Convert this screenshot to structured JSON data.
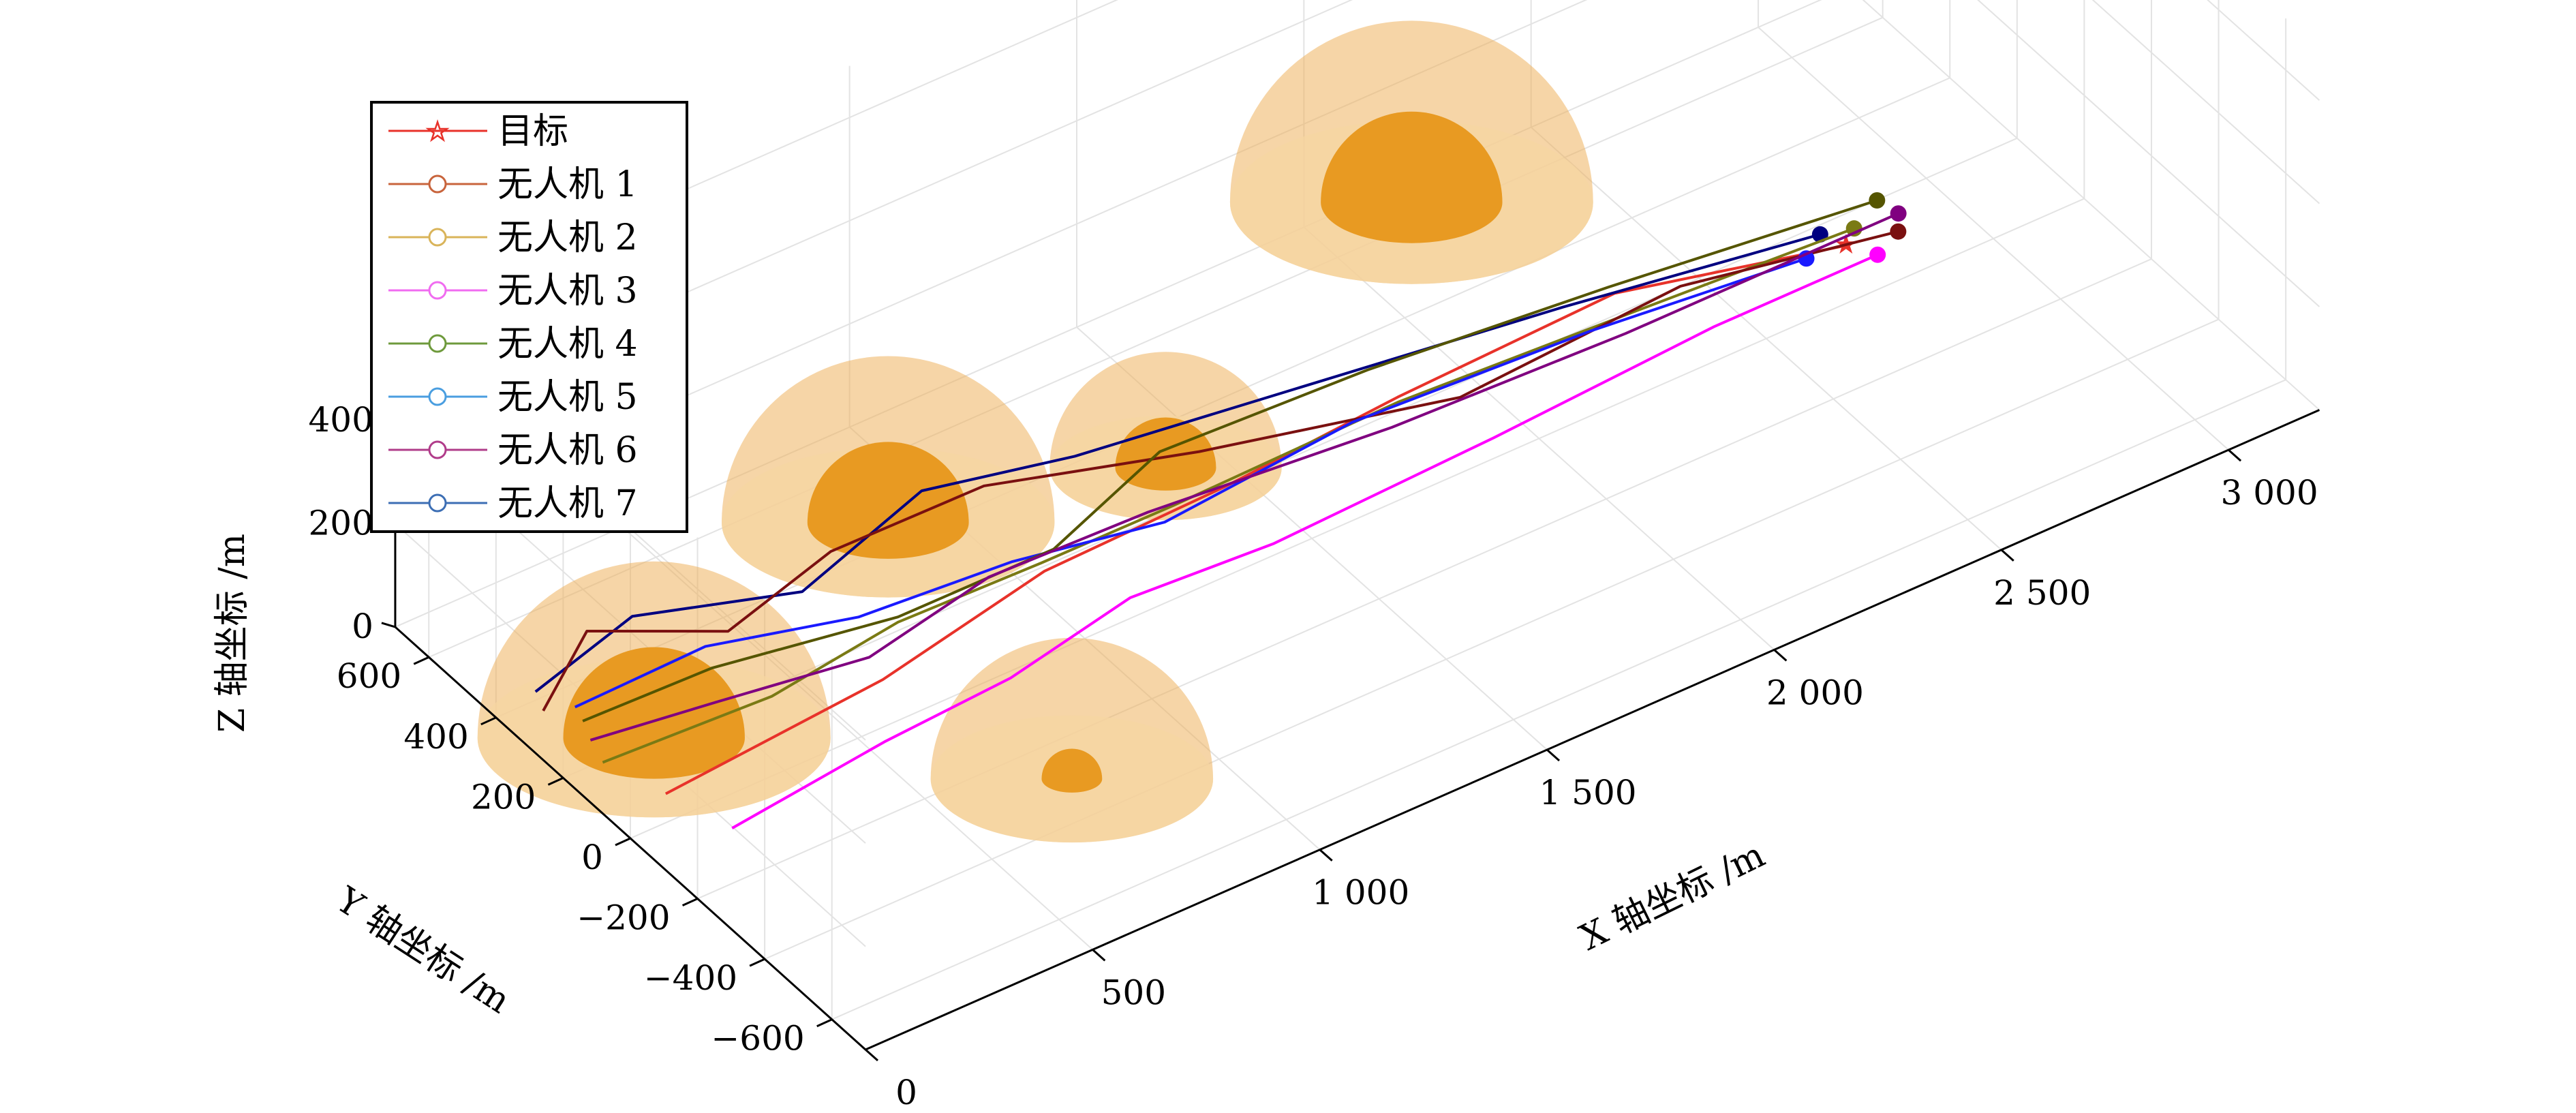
{
  "chart_data": {
    "type": "line3d",
    "title": "",
    "xlabel": "X 轴坐标 /m",
    "ylabel": "Y 轴坐标 /m",
    "zlabel": "Z 轴坐标 /m",
    "x_ticks": [
      "0",
      "500",
      "1 000",
      "1 500",
      "2 000",
      "2 500",
      "3 000"
    ],
    "y_ticks": [
      "−600",
      "−400",
      "−200",
      "0",
      "200",
      "400",
      "600"
    ],
    "z_ticks": [
      "0",
      "200",
      "400"
    ],
    "xlim": [
      0,
      3000
    ],
    "ylim": [
      -700,
      700
    ],
    "zlim": [
      0,
      700
    ],
    "grid": true,
    "legend_position": "top-left",
    "legend": [
      {
        "label": "目标",
        "color": "#e8322a",
        "marker": "star"
      },
      {
        "label": "无人机 1",
        "color": "#c8643c",
        "marker": "circle"
      },
      {
        "label": "无人机 2",
        "color": "#d9b45a",
        "marker": "circle"
      },
      {
        "label": "无人机 3",
        "color": "#f06cf0",
        "marker": "circle"
      },
      {
        "label": "无人机 4",
        "color": "#6e9a3c",
        "marker": "circle"
      },
      {
        "label": "无人机 5",
        "color": "#4a9ee0",
        "marker": "circle"
      },
      {
        "label": "无人机 6",
        "color": "#b03c8a",
        "marker": "circle"
      },
      {
        "label": "无人机 7",
        "color": "#3c6eb4",
        "marker": "circle"
      }
    ],
    "obstacles": [
      {
        "x": 200,
        "y": 200,
        "r_outer": 350,
        "r_inner": 180
      },
      {
        "x": 900,
        "y": 450,
        "r_outer": 330,
        "r_inner": 160
      },
      {
        "x": 750,
        "y": -300,
        "r_outer": 280,
        "r_inner": 60
      },
      {
        "x": 1400,
        "y": 300,
        "r_outer": 230,
        "r_inner": 100
      },
      {
        "x": 2200,
        "y": 650,
        "r_outer": 360,
        "r_inner": 180
      }
    ],
    "series": [
      {
        "name": "目标",
        "color": "#e8322a",
        "x": [
          100,
          600,
          1000,
          1400,
          1800,
          2300,
          2720
        ],
        "y": [
          30,
          60,
          120,
          120,
          150,
          180,
          60
        ],
        "z": [
          30,
          40,
          60,
          70,
          70,
          60,
          60
        ]
      },
      {
        "name": "无人机 1",
        "color": "#000080",
        "x": [
          50,
          300,
          600,
          900,
          1200,
          1700,
          2200,
          2700
        ],
        "y": [
          350,
          400,
          300,
          350,
          300,
          250,
          200,
          110
        ],
        "z": [
          60,
          80,
          70,
          120,
          100,
          80,
          60,
          60
        ]
      },
      {
        "name": "无人机 2",
        "color": "#7a7a14",
        "x": [
          50,
          400,
          700,
          1000,
          1300,
          1800,
          2300,
          2760
        ],
        "y": [
          150,
          120,
          150,
          130,
          140,
          150,
          120,
          90
        ],
        "z": [
          40,
          50,
          60,
          70,
          60,
          60,
          60,
          60
        ]
      },
      {
        "name": "无人机 3",
        "color": "#ff00ff",
        "x": [
          150,
          500,
          800,
          1100,
          1400,
          1900,
          2400,
          2760
        ],
        "y": [
          -100,
          -80,
          -50,
          0,
          -20,
          0,
          20,
          20
        ],
        "z": [
          20,
          40,
          30,
          40,
          40,
          40,
          50,
          50
        ]
      },
      {
        "name": "无人机 4",
        "color": "#7a1010",
        "x": [
          30,
          200,
          400,
          700,
          1000,
          1400,
          1900,
          2400,
          2820
        ],
        "y": [
          300,
          400,
          250,
          350,
          300,
          200,
          100,
          120,
          40
        ],
        "z": [
          60,
          90,
          100,
          80,
          120,
          90,
          60,
          70,
          60
        ]
      },
      {
        "name": "无人机 5",
        "color": "#1a1aff",
        "x": [
          100,
          350,
          650,
          950,
          1250,
          1700,
          2200,
          2640
        ],
        "y": [
          300,
          250,
          200,
          150,
          100,
          150,
          120,
          70
        ],
        "z": [
          40,
          90,
          60,
          80,
          70,
          60,
          60,
          60
        ]
      },
      {
        "name": "无人机 6",
        "color": "#555500",
        "x": [
          80,
          350,
          700,
          1050,
          1350,
          1800,
          2300,
          2840
        ],
        "y": [
          250,
          230,
          150,
          160,
          250,
          240,
          200,
          130
        ],
        "z": [
          50,
          60,
          70,
          60,
          80,
          70,
          60,
          60
        ]
      },
      {
        "name": "无人机 7",
        "color": "#800080",
        "x": [
          60,
          300,
          600,
          900,
          1250,
          1750,
          2250,
          2850
        ],
        "y": [
          200,
          150,
          100,
          150,
          150,
          100,
          80,
          80
        ],
        "z": [
          50,
          60,
          60,
          70,
          60,
          60,
          60,
          60
        ]
      }
    ]
  }
}
